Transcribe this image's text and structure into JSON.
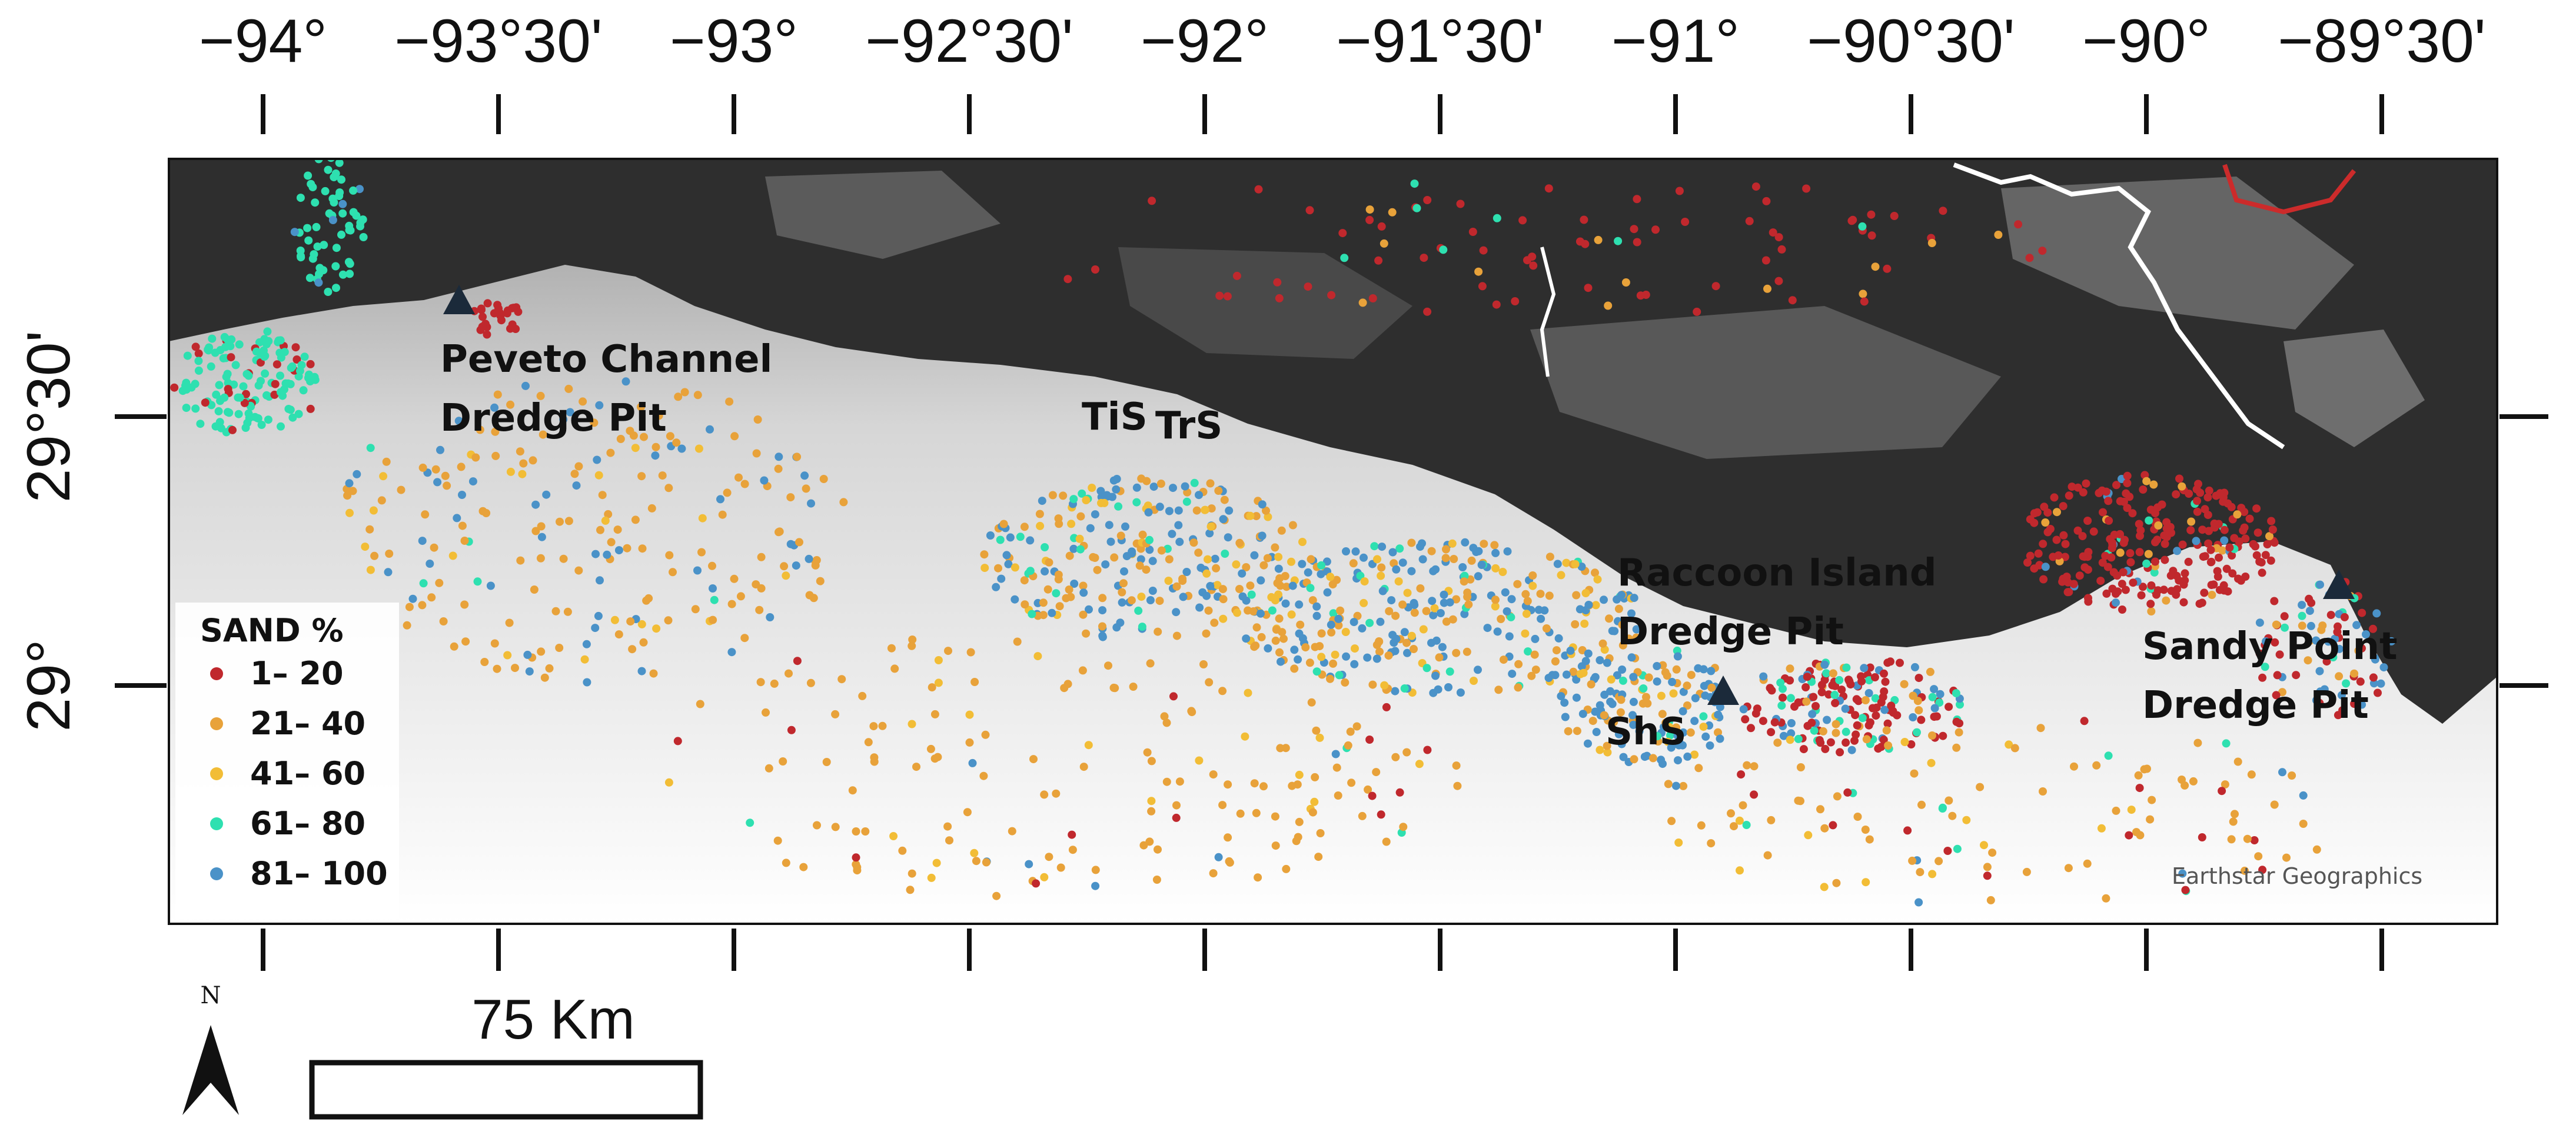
{
  "axes": {
    "longitude_labels": [
      "−94°",
      "−93°30'",
      "−93°",
      "−92°30'",
      "−92°",
      "−91°30'",
      "−91°",
      "−90°30'",
      "−90°",
      "−89°30'"
    ],
    "latitude_labels": [
      "29°30'",
      "29°"
    ]
  },
  "places": {
    "peveto_line1": "Peveto Channel",
    "peveto_line2": "Dredge Pit",
    "tis": "TiS",
    "trs": "TrS",
    "raccoon_line1": "Raccoon Island",
    "raccoon_line2": "Dredge Pit",
    "shs": "ShS",
    "sandy_line1": "Sandy Point",
    "sandy_line2": "Dredge Pit"
  },
  "legend": {
    "title": "SAND %",
    "classes": [
      {
        "label": "1– 20",
        "color": "#c0282d"
      },
      {
        "label": "21– 40",
        "color": "#e8a23a"
      },
      {
        "label": "41– 60",
        "color": "#f2bd36"
      },
      {
        "label": "61– 80",
        "color": "#2ee0b0"
      },
      {
        "label": "81– 100",
        "color": "#4a92c8"
      }
    ]
  },
  "attribution": "Earthstar Geographics",
  "scale_bar": {
    "label": "75 Km"
  },
  "north_arrow": {
    "letter": "N"
  },
  "colors": {
    "land_dark": "#2e2e2e",
    "water_light": "#e8e8e8",
    "site_marker": "#1b2a3a"
  }
}
